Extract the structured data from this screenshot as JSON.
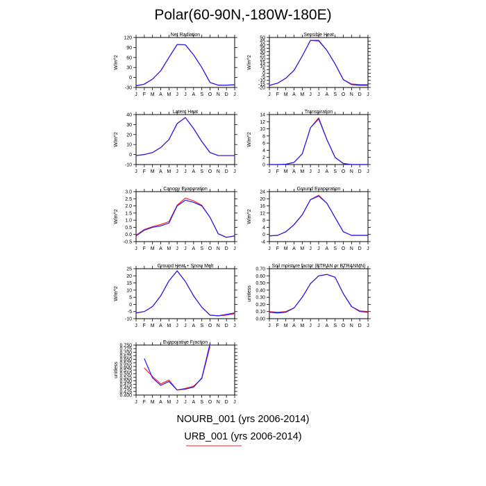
{
  "page": {
    "title": "Polar(60-90N,-180W-180E)"
  },
  "colors": {
    "NOURB_001": "#1a1aff",
    "URB_001": "#ff2020"
  },
  "legend": {
    "line1": "NOURB_001 (yrs 2006-2014)",
    "line2": "URB_001 (yrs 2006-2014)"
  },
  "chart_data": [
    {
      "type": "line",
      "title": "Net Radiation",
      "ylabel": "W/m^2",
      "ylim": [
        -30,
        120
      ],
      "yticks": [
        "-30",
        "0",
        "30",
        "60",
        "90",
        "120"
      ],
      "categories": [
        "J",
        "F",
        "M",
        "A",
        "M",
        "J",
        "J",
        "A",
        "S",
        "O",
        "N",
        "D",
        "J"
      ],
      "series": [
        {
          "name": "NOURB_001",
          "values": [
            -25,
            -20,
            -5,
            20,
            60,
            99,
            98,
            68,
            30,
            -15,
            -23,
            -23,
            -22
          ]
        },
        {
          "name": "URB_001",
          "values": [
            -25,
            -20,
            -5,
            20,
            60,
            99,
            98,
            68,
            30,
            -15,
            -23,
            -23,
            -22
          ]
        }
      ]
    },
    {
      "type": "line",
      "title": "Sensible Heat",
      "ylabel": "W/m^2",
      "ylim": [
        -20,
        50
      ],
      "yticks": [
        "-20",
        "-15",
        "-10",
        "-5",
        "0",
        "5",
        "10",
        "15",
        "20",
        "25",
        "30",
        "35",
        "40",
        "45",
        "50"
      ],
      "categories": [
        "J",
        "F",
        "M",
        "A",
        "M",
        "J",
        "J",
        "A",
        "S",
        "O",
        "N",
        "D",
        "J"
      ],
      "series": [
        {
          "name": "NOURB_001",
          "values": [
            -17,
            -14,
            -7,
            4,
            24,
            46,
            46,
            32,
            13,
            -9,
            -16,
            -17,
            -17
          ]
        },
        {
          "name": "URB_001",
          "values": [
            -17,
            -14,
            -7,
            4,
            24,
            46,
            45,
            32,
            13,
            -9,
            -15,
            -16,
            -16
          ]
        }
      ]
    },
    {
      "type": "line",
      "title": "Latent Heat",
      "ylabel": "W/m^2",
      "ylim": [
        -10,
        40
      ],
      "yticks": [
        "-10",
        "0",
        "10",
        "20",
        "30",
        "40"
      ],
      "categories": [
        "J",
        "F",
        "M",
        "A",
        "M",
        "J",
        "J",
        "A",
        "S",
        "O",
        "N",
        "D",
        "J"
      ],
      "series": [
        {
          "name": "NOURB_001",
          "values": [
            -1,
            0,
            2,
            7,
            15,
            31,
            37,
            26,
            13,
            2,
            -1,
            -1,
            -1
          ]
        },
        {
          "name": "URB_001",
          "values": [
            -1,
            0,
            2,
            7,
            15,
            31,
            37,
            26,
            13,
            2,
            -1,
            -1,
            -1
          ]
        }
      ]
    },
    {
      "type": "line",
      "title": "Transpiration",
      "ylabel": "W/m^2",
      "ylim": [
        0,
        14
      ],
      "yticks": [
        "0",
        "2",
        "4",
        "6",
        "8",
        "10",
        "12",
        "14"
      ],
      "categories": [
        "J",
        "F",
        "M",
        "A",
        "M",
        "J",
        "J",
        "A",
        "S",
        "O",
        "N",
        "D",
        "J"
      ],
      "series": [
        {
          "name": "NOURB_001",
          "values": [
            0,
            0,
            0.1,
            0.6,
            3,
            10.3,
            12.8,
            7,
            2,
            0.3,
            0,
            0,
            0
          ]
        },
        {
          "name": "URB_001",
          "values": [
            0,
            0,
            0.1,
            0.6,
            3,
            10.3,
            13.1,
            7,
            2,
            0.3,
            0,
            0,
            0
          ]
        }
      ]
    },
    {
      "type": "line",
      "title": "Canopy Evaporation",
      "ylabel": "W/m^2",
      "ylim": [
        -0.5,
        3.0
      ],
      "yticks": [
        "-0.5",
        "0.0",
        "0.5",
        "1.0",
        "1.5",
        "2.0",
        "2.5",
        "3.0"
      ],
      "categories": [
        "J",
        "F",
        "M",
        "A",
        "M",
        "J",
        "J",
        "A",
        "S",
        "O",
        "N",
        "D",
        "J"
      ],
      "series": [
        {
          "name": "NOURB_001",
          "values": [
            -0.1,
            0.3,
            0.5,
            0.6,
            0.8,
            2.0,
            2.4,
            2.25,
            2.0,
            1.2,
            0.05,
            -0.2,
            -0.1
          ]
        },
        {
          "name": "URB_001",
          "values": [
            -0.05,
            0.35,
            0.55,
            0.7,
            0.9,
            2.05,
            2.55,
            2.35,
            2.05,
            1.2,
            0.05,
            -0.2,
            -0.1
          ]
        }
      ]
    },
    {
      "type": "line",
      "title": "Ground Evaporation",
      "ylabel": "W/m^2",
      "ylim": [
        -4,
        24
      ],
      "yticks": [
        "-4",
        "0",
        "4",
        "8",
        "12",
        "16",
        "20",
        "24"
      ],
      "categories": [
        "J",
        "F",
        "M",
        "A",
        "M",
        "J",
        "J",
        "A",
        "S",
        "O",
        "N",
        "D",
        "J"
      ],
      "series": [
        {
          "name": "NOURB_001",
          "values": [
            -0.8,
            -0.5,
            1.5,
            5.5,
            11,
            19.5,
            21.5,
            17.5,
            9.5,
            1.5,
            -0.5,
            -0.5,
            -0.5
          ]
        },
        {
          "name": "URB_001",
          "values": [
            -0.8,
            -0.5,
            1.5,
            5.5,
            11,
            19.5,
            22,
            17.5,
            9.5,
            1.5,
            -0.5,
            -0.5,
            -0.5
          ]
        }
      ]
    },
    {
      "type": "line",
      "title": "Ground Heat + Snow Melt",
      "ylabel": "W/m^2",
      "ylim": [
        -10,
        25
      ],
      "yticks": [
        "-10",
        "-5",
        "0",
        "5",
        "10",
        "15",
        "20",
        "25"
      ],
      "categories": [
        "J",
        "F",
        "M",
        "A",
        "M",
        "J",
        "J",
        "A",
        "S",
        "O",
        "N",
        "D",
        "J"
      ],
      "series": [
        {
          "name": "NOURB_001",
          "values": [
            -6,
            -5,
            -1.5,
            6,
            16.5,
            23.5,
            16,
            6,
            -2,
            -7.5,
            -8,
            -7,
            -6
          ]
        },
        {
          "name": "URB_001",
          "values": [
            -6,
            -5,
            -1.5,
            6,
            16.5,
            23.5,
            16,
            6,
            -2,
            -7.5,
            -8,
            -7.5,
            -6.5
          ]
        }
      ]
    },
    {
      "type": "line",
      "title": "Soil moisture factor (BTRAN or BTRANMN)",
      "ylabel": "unitless",
      "ylim": [
        0,
        0.7
      ],
      "yticks": [
        "0.00",
        "0.10",
        "0.20",
        "0.30",
        "0.40",
        "0.50",
        "0.60",
        "0.70"
      ],
      "categories": [
        "J",
        "F",
        "M",
        "A",
        "M",
        "J",
        "J",
        "A",
        "S",
        "O",
        "N",
        "D",
        "J"
      ],
      "series": [
        {
          "name": "NOURB_001",
          "values": [
            0.09,
            0.08,
            0.09,
            0.15,
            0.3,
            0.49,
            0.6,
            0.62,
            0.58,
            0.35,
            0.17,
            0.1,
            0.09
          ]
        },
        {
          "name": "URB_001",
          "values": [
            0.1,
            0.09,
            0.1,
            0.15,
            0.3,
            0.49,
            0.6,
            0.62,
            0.58,
            0.35,
            0.17,
            0.11,
            0.1
          ]
        }
      ]
    },
    {
      "type": "line",
      "title": "Evaporative Fraction",
      "ylabel": "unitless",
      "ylim": [
        0.4,
        0.75
      ],
      "yticks": [
        "0.400",
        "0.425",
        "0.450",
        "0.475",
        "0.500",
        "0.525",
        "0.550",
        "0.575",
        "0.600",
        "0.625",
        "0.650",
        "0.675",
        "0.700",
        "0.725",
        "0.750"
      ],
      "categories": [
        "J",
        "F",
        "M",
        "A",
        "M",
        "J",
        "J",
        "A",
        "S",
        "O",
        "N",
        "D",
        "J"
      ],
      "series": [
        {
          "name": "NOURB_001",
          "values": [
            null,
            0.655,
            0.52,
            0.468,
            0.495,
            0.435,
            0.442,
            0.455,
            0.52,
            0.76,
            null,
            null,
            null
          ]
        },
        {
          "name": "URB_001",
          "values": [
            null,
            0.59,
            0.53,
            0.478,
            0.505,
            0.435,
            0.447,
            0.462,
            0.515,
            0.74,
            null,
            null,
            null
          ]
        }
      ]
    }
  ]
}
